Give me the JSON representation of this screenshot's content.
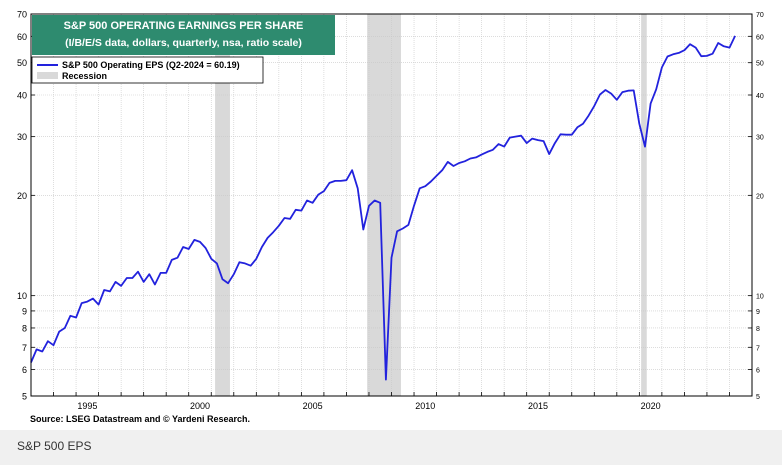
{
  "chart_data": {
    "type": "line",
    "title_line1": "S&P 500 OPERATING EARNINGS PER SHARE",
    "title_line2": "(I/B/E/S data, dollars, quarterly, nsa, ratio scale)",
    "title_bg": "#2e8b6f",
    "scale": "log",
    "ylim": [
      5,
      70
    ],
    "yticks": [
      5,
      6,
      7,
      8,
      9,
      10,
      20,
      30,
      40,
      50,
      60,
      70
    ],
    "xlim": [
      1993.0,
      2025.0
    ],
    "xticks": [
      1995,
      2000,
      2005,
      2010,
      2015,
      2020
    ],
    "grid": true,
    "legend_position": "top-left",
    "series": [
      {
        "name": "S&P 500 Operating EPS (Q2-2024 = 60.19)",
        "color": "#2222dd",
        "x": [
          1993.0,
          1993.25,
          1993.5,
          1993.75,
          1994.0,
          1994.25,
          1994.5,
          1994.75,
          1995.0,
          1995.25,
          1995.5,
          1995.75,
          1996.0,
          1996.25,
          1996.5,
          1996.75,
          1997.0,
          1997.25,
          1997.5,
          1997.75,
          1998.0,
          1998.25,
          1998.5,
          1998.75,
          1999.0,
          1999.25,
          1999.5,
          1999.75,
          2000.0,
          2000.25,
          2000.5,
          2000.75,
          2001.0,
          2001.25,
          2001.5,
          2001.75,
          2002.0,
          2002.25,
          2002.5,
          2002.75,
          2003.0,
          2003.25,
          2003.5,
          2003.75,
          2004.0,
          2004.25,
          2004.5,
          2004.75,
          2005.0,
          2005.25,
          2005.5,
          2005.75,
          2006.0,
          2006.25,
          2006.5,
          2006.75,
          2007.0,
          2007.25,
          2007.5,
          2007.75,
          2008.0,
          2008.25,
          2008.5,
          2008.75,
          2009.0,
          2009.25,
          2009.5,
          2009.75,
          2010.0,
          2010.25,
          2010.5,
          2010.75,
          2011.0,
          2011.25,
          2011.5,
          2011.75,
          2012.0,
          2012.25,
          2012.5,
          2012.75,
          2013.0,
          2013.25,
          2013.5,
          2013.75,
          2014.0,
          2014.25,
          2014.5,
          2014.75,
          2015.0,
          2015.25,
          2015.5,
          2015.75,
          2016.0,
          2016.25,
          2016.5,
          2016.75,
          2017.0,
          2017.25,
          2017.5,
          2017.75,
          2018.0,
          2018.25,
          2018.5,
          2018.75,
          2019.0,
          2019.25,
          2019.5,
          2019.75,
          2020.0,
          2020.25,
          2020.5,
          2020.75,
          2021.0,
          2021.25,
          2021.5,
          2021.75,
          2022.0,
          2022.25,
          2022.5,
          2022.75,
          2023.0,
          2023.25,
          2023.5,
          2023.75,
          2024.0,
          2024.25
        ],
        "values": [
          6.3,
          6.9,
          6.8,
          7.3,
          7.1,
          7.8,
          8.0,
          8.7,
          8.6,
          9.5,
          9.6,
          9.8,
          9.4,
          10.4,
          10.3,
          11.0,
          10.7,
          11.3,
          11.3,
          11.8,
          11.0,
          11.6,
          10.8,
          11.7,
          11.7,
          12.8,
          13.0,
          14.0,
          13.8,
          14.7,
          14.5,
          13.9,
          12.9,
          12.5,
          11.2,
          10.9,
          11.6,
          12.6,
          12.5,
          12.3,
          12.9,
          14.0,
          14.9,
          15.5,
          16.2,
          17.1,
          17.0,
          18.1,
          18.0,
          19.3,
          19.0,
          20.1,
          20.6,
          21.8,
          22.1,
          22.1,
          22.2,
          23.8,
          21.0,
          15.8,
          18.6,
          19.3,
          19.0,
          5.6,
          13.0,
          15.6,
          15.9,
          16.3,
          18.6,
          21.0,
          21.3,
          22.0,
          22.9,
          23.8,
          25.2,
          24.5,
          25.0,
          25.3,
          25.8,
          26.0,
          26.5,
          27.0,
          27.4,
          28.5,
          28.0,
          29.8,
          30.0,
          30.2,
          28.7,
          29.6,
          29.3,
          29.1,
          26.6,
          28.7,
          30.5,
          30.4,
          30.4,
          32.0,
          32.8,
          34.7,
          37.1,
          40.1,
          41.4,
          40.4,
          38.7,
          40.8,
          41.2,
          41.3,
          32.8,
          28.0,
          37.7,
          41.6,
          48.4,
          52.2,
          53.0,
          53.5,
          54.5,
          56.8,
          55.5,
          52.3,
          52.4,
          53.2,
          57.3,
          56.0,
          55.5,
          60.19
        ]
      }
    ],
    "recession_label": "Recession",
    "recession_color": "#d9d9d9",
    "recessions": [
      [
        2001.17,
        2001.83
      ],
      [
        2007.92,
        2009.42
      ],
      [
        2020.08,
        2020.33
      ]
    ]
  },
  "source": "Source: LSEG Datastream and © Yardeni Research.",
  "caption": "S&P 500 EPS"
}
